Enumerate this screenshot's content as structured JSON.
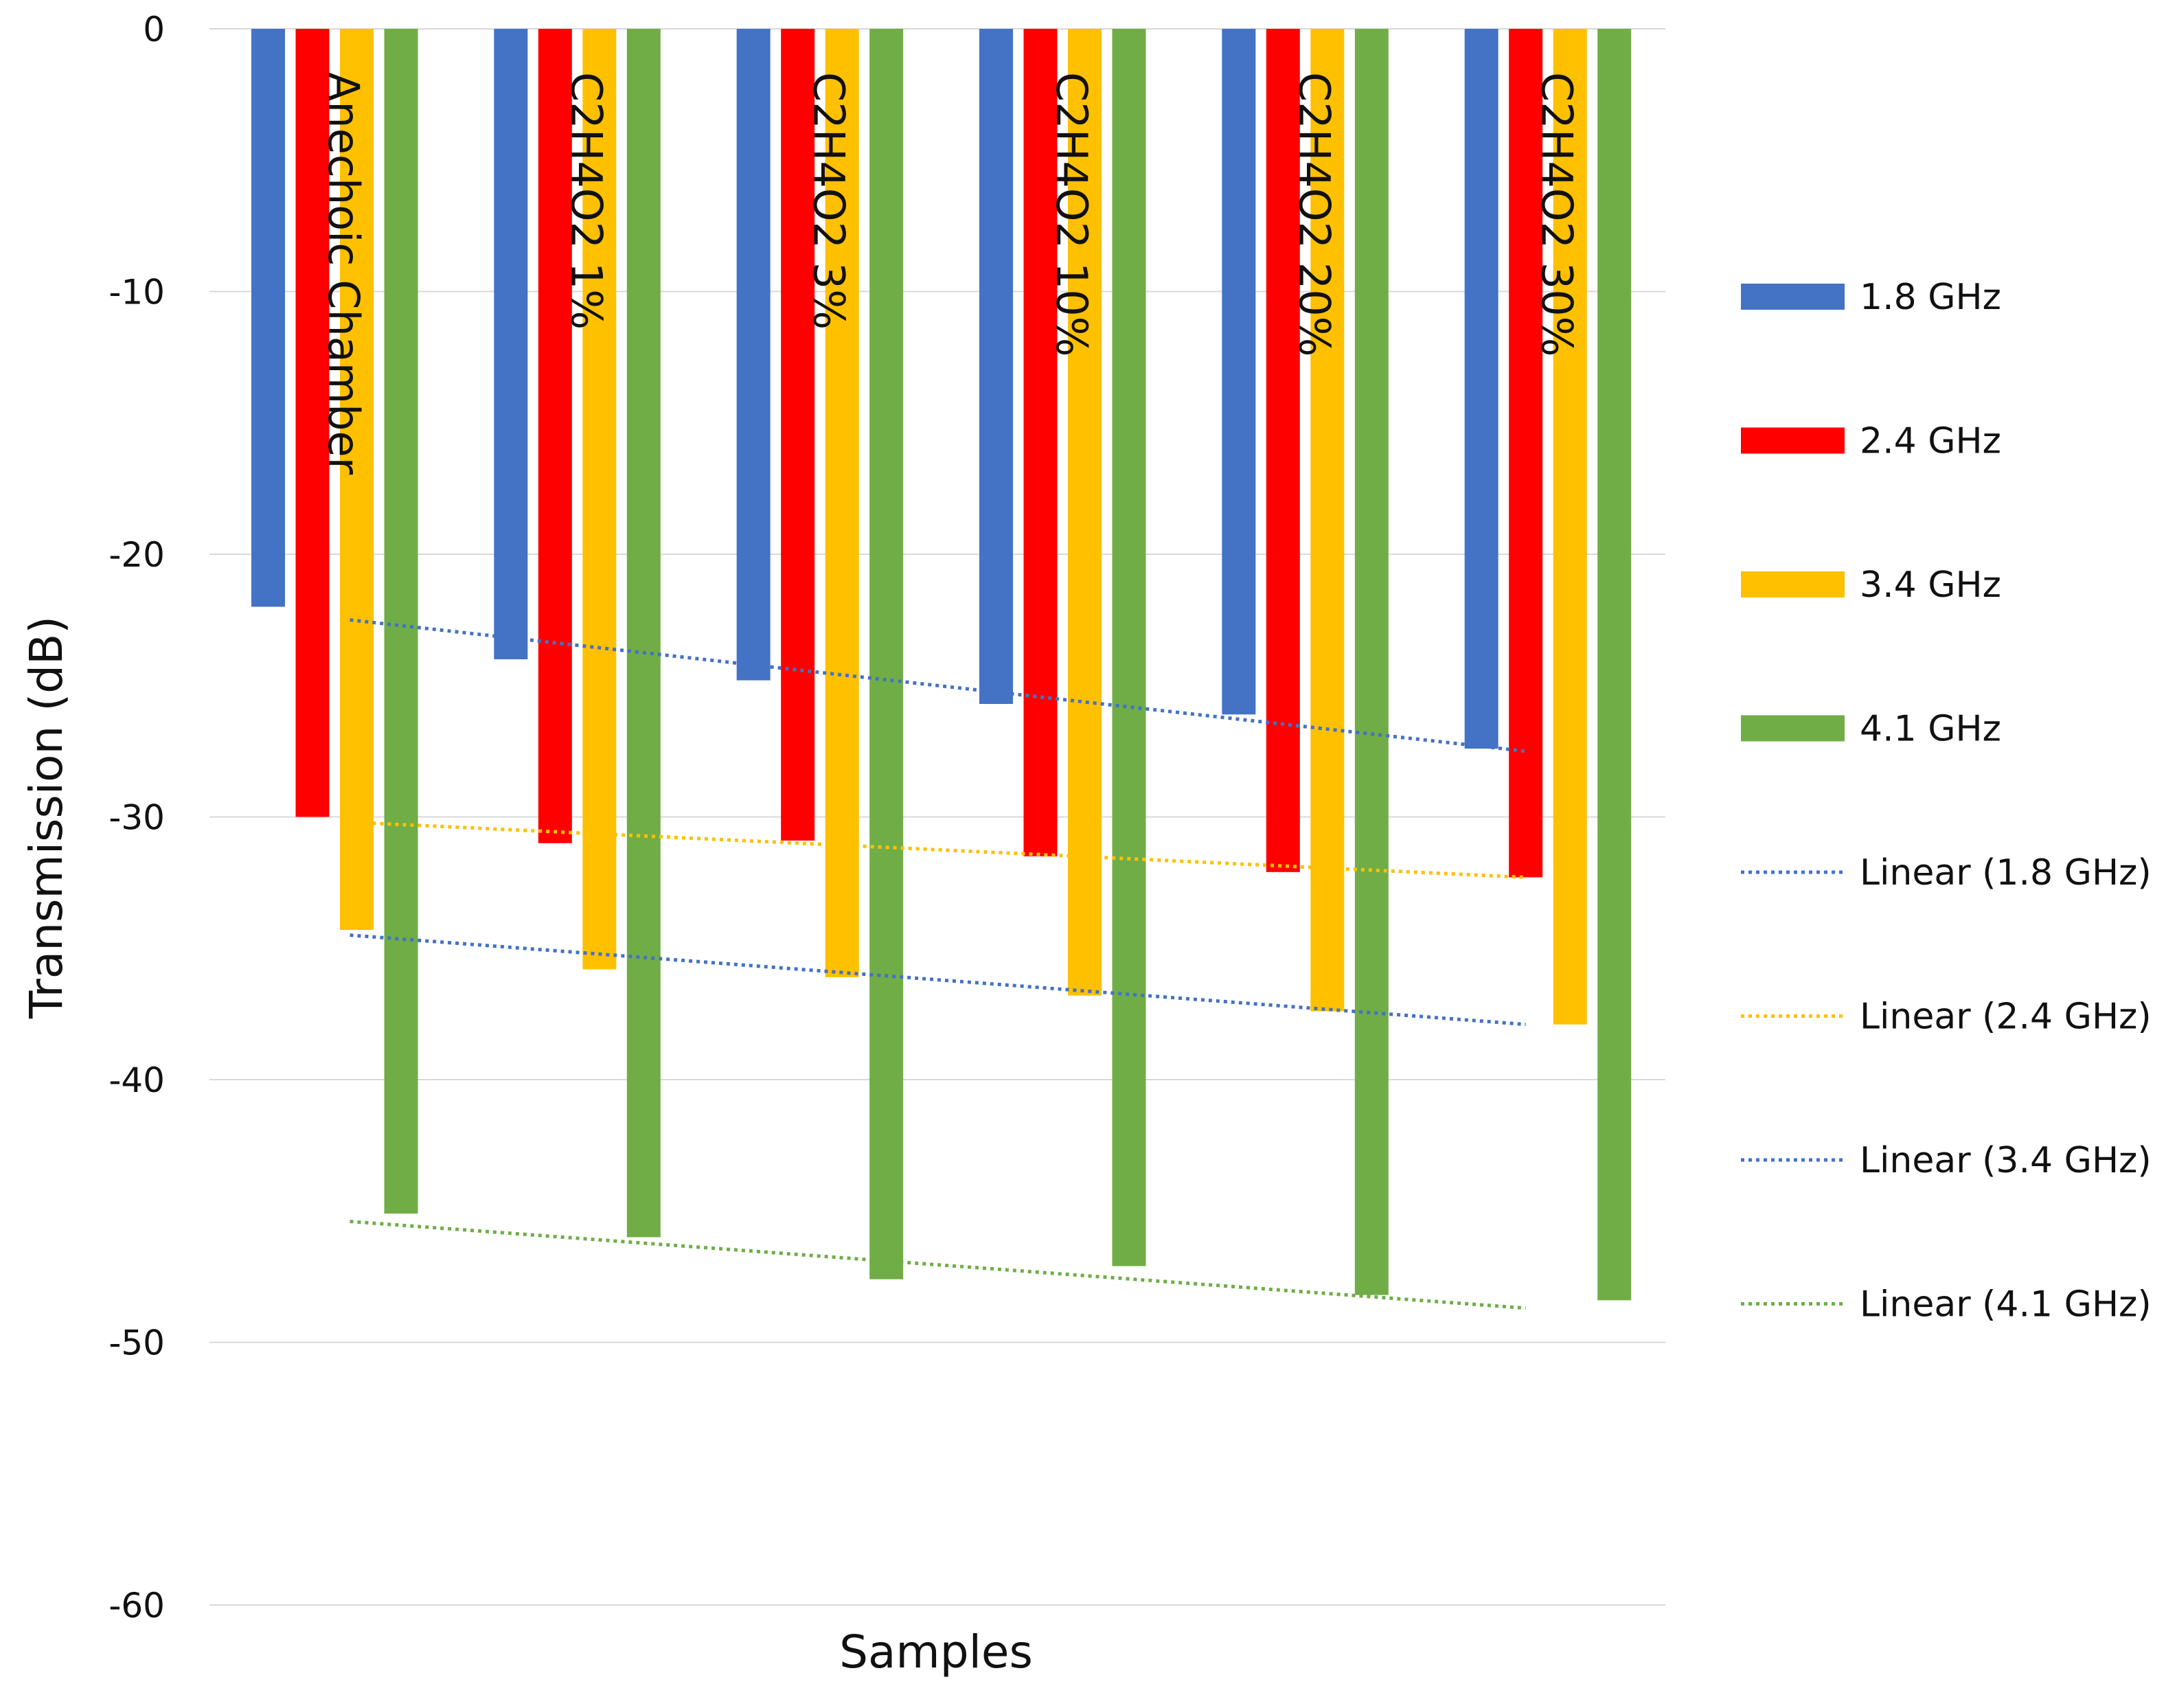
{
  "chart_data": {
    "type": "bar",
    "title": "",
    "xlabel": "Samples",
    "ylabel": "Transmission (dB)",
    "ylim": [
      -60,
      0
    ],
    "yticks": [
      0,
      -10,
      -20,
      -30,
      -40,
      -50,
      -60
    ],
    "grid": true,
    "legend_position": "right",
    "categories": [
      "Anechoic Chamber",
      "C2H4O2 1%",
      "C2H4O2 3%",
      "C2H4O2 10%",
      "C2H4O2 20%",
      "C2H4O2 30%"
    ],
    "series": [
      {
        "name": "1.8 GHz",
        "color": "#4472C4",
        "values": [
          -22.0,
          -24.0,
          -24.8,
          -25.7,
          -26.1,
          -27.4
        ]
      },
      {
        "name": "2.4 GHz",
        "color": "#FF0000",
        "values": [
          -30.0,
          -31.0,
          -30.9,
          -31.5,
          -32.1,
          -32.3
        ]
      },
      {
        "name": "3.4 GHz",
        "color": "#FFC000",
        "values": [
          -34.3,
          -35.8,
          -36.1,
          -36.8,
          -37.4,
          -37.9
        ]
      },
      {
        "name": "4.1 GHz",
        "color": "#70AD47",
        "values": [
          -45.1,
          -46.0,
          -47.6,
          -47.1,
          -48.2,
          -48.4
        ]
      }
    ],
    "trendlines": [
      {
        "name": "Linear (1.8 GHz)",
        "color": "#4472C4",
        "start": -22.5,
        "end": -27.5
      },
      {
        "name": "Linear (2.4 GHz)",
        "color": "#FFC000",
        "start": -30.2,
        "end": -32.3
      },
      {
        "name": "Linear (3.4 GHz)",
        "color": "#4472C4",
        "start": -34.5,
        "end": -37.9
      },
      {
        "name": "Linear (4.1 GHz)",
        "color": "#70AD47",
        "start": -45.4,
        "end": -48.7
      }
    ]
  }
}
